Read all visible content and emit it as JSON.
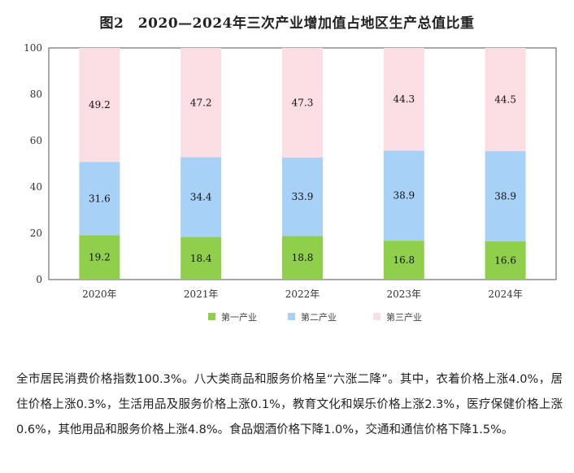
{
  "chart_data": {
    "type": "bar",
    "stacked": true,
    "title": "图2　2020—2024年三次产业增加值占地区生产总值比重",
    "categories": [
      "2020年",
      "2021年",
      "2022年",
      "2023年",
      "2024年"
    ],
    "ylim": [
      0,
      100
    ],
    "yticks": [
      0,
      20,
      40,
      60,
      80,
      100
    ],
    "grid": false,
    "legend_position": "bottom",
    "series": [
      {
        "name": "第一产业",
        "color": "#8fcf4b",
        "values": [
          19.2,
          18.4,
          18.8,
          16.8,
          16.6
        ]
      },
      {
        "name": "第二产业",
        "color": "#a8d1f7",
        "values": [
          31.6,
          34.4,
          33.9,
          38.9,
          38.9
        ]
      },
      {
        "name": "第三产业",
        "color": "#fbdde4",
        "values": [
          49.2,
          47.2,
          47.3,
          44.3,
          44.5
        ]
      }
    ]
  },
  "paragraph": "全市居民消费价格指数100.3%。八大类商品和服务价格呈“六涨二降”。其中，衣着价格上涨4.0%，居住价格上涨0.3%，生活用品及服务价格上涨0.1%，教育文化和娱乐价格上涨2.3%，医疗保健价格上涨0.6%，其他用品和服务价格上涨4.8%。食品烟酒价格下降1.0%，交通和通信价格下降1.5%。"
}
